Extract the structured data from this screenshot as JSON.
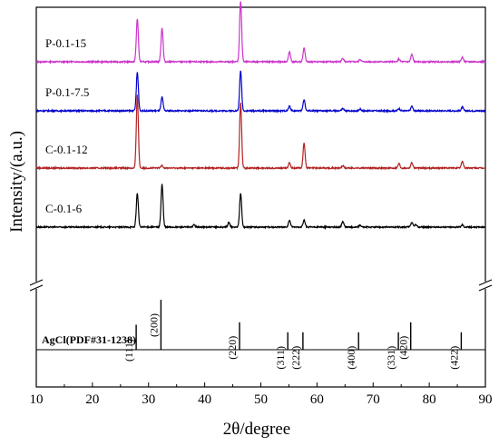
{
  "chart_data": {
    "type": "line",
    "xlabel": "2θ/degree",
    "ylabel": "Intensity/(a.u.)",
    "xlim": [
      10,
      90
    ],
    "x_ticks": [
      "10",
      "20",
      "30",
      "40",
      "50",
      "60",
      "70",
      "80",
      "90"
    ],
    "y_ticks": [],
    "axis_break": true,
    "series": [
      {
        "name": "P-0.1-15",
        "color": "#cc33cc",
        "baseline": 3,
        "peaks": [
          [
            28.0,
            0.95
          ],
          [
            32.4,
            0.75
          ],
          [
            46.4,
            1.35
          ],
          [
            55.1,
            0.22
          ],
          [
            57.7,
            0.3
          ],
          [
            64.6,
            0.08
          ],
          [
            67.7,
            0.05
          ],
          [
            74.6,
            0.06
          ],
          [
            76.9,
            0.16
          ],
          [
            85.9,
            0.1
          ]
        ]
      },
      {
        "name": "P-0.1-7.5",
        "color": "#0000cc",
        "baseline": 2,
        "peaks": [
          [
            28.0,
            0.85
          ],
          [
            32.4,
            0.3
          ],
          [
            46.4,
            0.88
          ],
          [
            55.1,
            0.1
          ],
          [
            57.7,
            0.25
          ],
          [
            64.6,
            0.05
          ],
          [
            67.7,
            0.04
          ],
          [
            74.6,
            0.05
          ],
          [
            76.9,
            0.1
          ],
          [
            85.9,
            0.08
          ]
        ]
      },
      {
        "name": "C-0.1-12",
        "color": "#b22222",
        "baseline": 1,
        "peaks": [
          [
            28.0,
            1.6
          ],
          [
            32.4,
            0.06
          ],
          [
            46.4,
            1.45
          ],
          [
            55.1,
            0.12
          ],
          [
            57.7,
            0.55
          ],
          [
            64.6,
            0.05
          ],
          [
            74.6,
            0.1
          ],
          [
            76.9,
            0.12
          ],
          [
            85.9,
            0.15
          ]
        ]
      },
      {
        "name": "C-0.1-6",
        "color": "#000000",
        "baseline": 0,
        "peaks": [
          [
            28.0,
            0.75
          ],
          [
            32.4,
            0.95
          ],
          [
            38.1,
            0.05
          ],
          [
            44.3,
            0.1
          ],
          [
            46.4,
            0.75
          ],
          [
            55.1,
            0.15
          ],
          [
            57.7,
            0.15
          ],
          [
            64.6,
            0.12
          ],
          [
            67.7,
            0.04
          ],
          [
            76.9,
            0.1
          ],
          [
            77.6,
            0.05
          ],
          [
            85.9,
            0.05
          ]
        ]
      }
    ],
    "reference": {
      "name": "AgCl(PDF#31-1238)",
      "lines": [
        {
          "x": 27.8,
          "hkl": "(111)",
          "rel": 0.5
        },
        {
          "x": 32.2,
          "hkl": "(200)",
          "rel": 1.0
        },
        {
          "x": 46.2,
          "hkl": "(220)",
          "rel": 0.55
        },
        {
          "x": 54.8,
          "hkl": "(311)",
          "rel": 0.35
        },
        {
          "x": 57.5,
          "hkl": "(222)",
          "rel": 0.35
        },
        {
          "x": 67.4,
          "hkl": "(400)",
          "rel": 0.35
        },
        {
          "x": 74.5,
          "hkl": "(331)",
          "rel": 0.35
        },
        {
          "x": 76.7,
          "hkl": "(420)",
          "rel": 0.55
        },
        {
          "x": 85.7,
          "hkl": "(422)",
          "rel": 0.35
        }
      ]
    }
  }
}
